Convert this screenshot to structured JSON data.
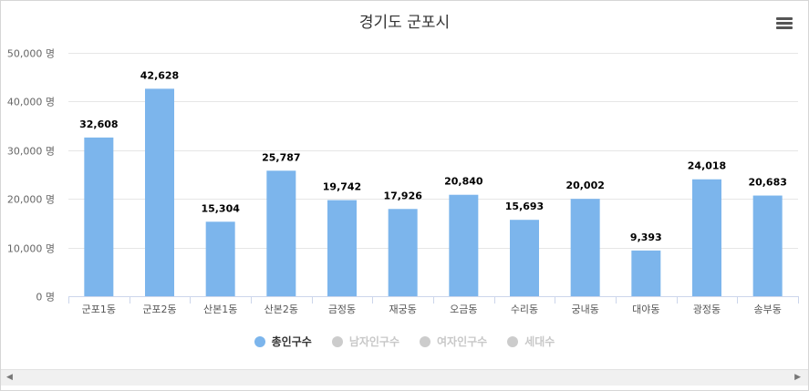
{
  "title": "경기도 군포시",
  "menu_icon": "hamburger-menu-icon",
  "legend": [
    {
      "label": "총인구수",
      "active": true,
      "color": "#7cb5ec"
    },
    {
      "label": "남자인구수",
      "active": false,
      "color": "#cccccc"
    },
    {
      "label": "여자인구수",
      "active": false,
      "color": "#cccccc"
    },
    {
      "label": "세대수",
      "active": false,
      "color": "#cccccc"
    }
  ],
  "scrollbar": {
    "left_arrow": "◀",
    "right_arrow": "▶"
  },
  "chart_data": {
    "type": "bar",
    "title": "경기도 군포시",
    "categories": [
      "군포1동",
      "군포2동",
      "산본1동",
      "산본2동",
      "금정동",
      "재궁동",
      "오금동",
      "수리동",
      "궁내동",
      "대야동",
      "광정동",
      "송부동"
    ],
    "series": [
      {
        "name": "총인구수",
        "values": [
          32608,
          42628,
          15304,
          25787,
          19742,
          17926,
          20840,
          15693,
          20002,
          9393,
          24018,
          20683
        ]
      }
    ],
    "value_labels": [
      "32,608",
      "42,628",
      "15,304",
      "25,787",
      "19,742",
      "17,926",
      "20,840",
      "15,693",
      "20,002",
      "9,393",
      "24,018",
      "20,683"
    ],
    "ylim": [
      0,
      50000
    ],
    "yticks": [
      0,
      10000,
      20000,
      30000,
      40000,
      50000
    ],
    "ytick_labels": [
      "0 명",
      "10,000 명",
      "20,000 명",
      "30,000 명",
      "40,000 명",
      "50,000 명"
    ],
    "bar_color": "#7cb5ec",
    "grid": true,
    "legend_position": "bottom"
  }
}
